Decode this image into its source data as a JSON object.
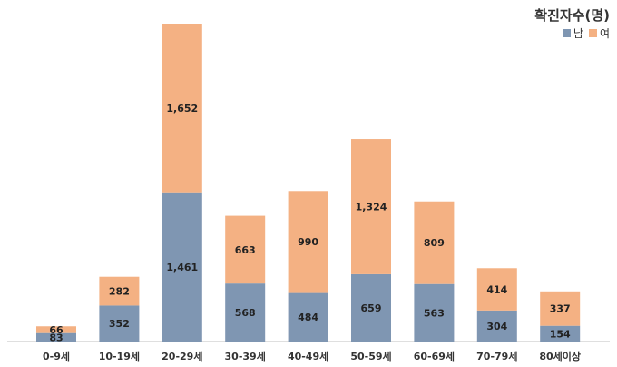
{
  "chart_data": {
    "type": "bar",
    "stacked": true,
    "legend_title": "확진자수(명)",
    "legend_position": "top-right",
    "categories": [
      "0-9세",
      "10-19세",
      "20-29세",
      "30-39세",
      "40-49세",
      "50-59세",
      "60-69세",
      "70-79세",
      "80세이상"
    ],
    "series": [
      {
        "name": "남",
        "color": "#7f96b2",
        "values": [
          83,
          352,
          1461,
          568,
          484,
          659,
          563,
          304,
          154
        ],
        "labels": [
          "83",
          "352",
          "1,461",
          "568",
          "484",
          "659",
          "563",
          "304",
          "154"
        ]
      },
      {
        "name": "여",
        "color": "#f4b183",
        "values": [
          66,
          282,
          1652,
          663,
          990,
          1324,
          809,
          414,
          337
        ],
        "labels": [
          "66",
          "282",
          "1,652",
          "663",
          "990",
          "1,324",
          "809",
          "414",
          "337"
        ]
      }
    ],
    "ylim": [
      0,
      3113
    ],
    "grid": false
  }
}
